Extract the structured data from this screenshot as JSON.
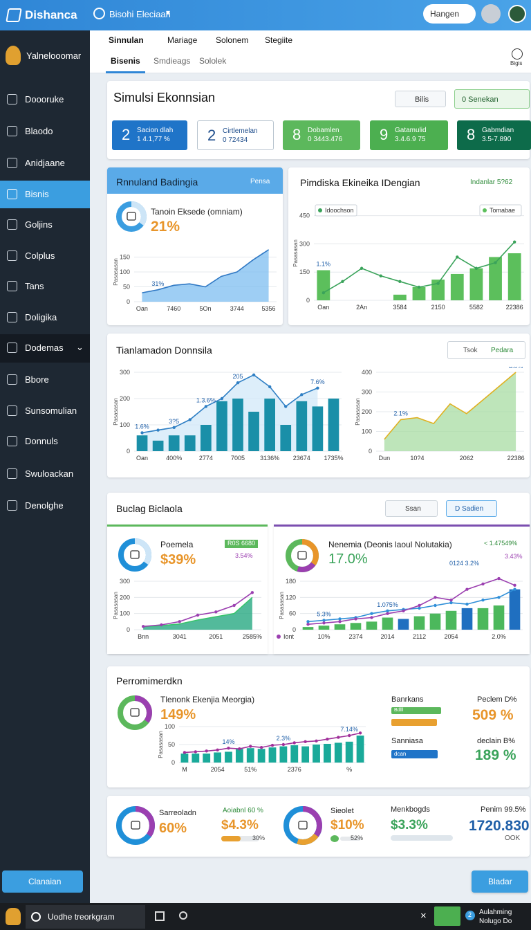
{
  "topbar": {
    "brand": "Dishanca",
    "search": "Bisohi Eleciaan",
    "button": "Hangen"
  },
  "sidebar": {
    "user": "Yalnelooomar",
    "items": [
      "Doooruke",
      "Blaodo",
      "Anidjaane",
      "Bisnis",
      "Goljins",
      "Colplus",
      "Tans",
      "Doligika",
      "Dodemas",
      "Bbore",
      "Sunsomulian",
      "Donnuls",
      "Swuloackan",
      "Denolghe"
    ],
    "active": 3,
    "button": "Clanaian"
  },
  "tabs": {
    "primary": [
      "Sinnulan",
      "Mariage",
      "Solonem",
      "Stegiite"
    ],
    "secondary": [
      "Bisenis",
      "Smdieags",
      "Sololek"
    ],
    "icon_label": "Bigis"
  },
  "summary": {
    "title": "Simulsi Ekonnsian",
    "dropdown": "Bilis",
    "button": "0 Senekan",
    "tiles": [
      {
        "value": 2,
        "label": "Sacion dlah",
        "sub": "1 4.1,77 %",
        "color": "#1f74c8"
      },
      {
        "value": 2,
        "label": "Cirtlemelan",
        "sub": "0 72434",
        "color": "#ffffff"
      },
      {
        "value": 8,
        "label": "Dobamlen",
        "sub": "0 3443.476",
        "color": "#5cb85c"
      },
      {
        "value": 9,
        "label": "Gatamulid",
        "sub": "3.4.6.9 75",
        "color": "#4caf50"
      },
      {
        "value": 8,
        "label": "Gabmdian",
        "sub": "3.5-7.890",
        "color": "#0d6b4a"
      }
    ]
  },
  "revenue": {
    "title": "Rnnuland Badingia",
    "action": "Pensa",
    "kpi_label": "Tanoin Eksede (omniam)",
    "kpi": "21%",
    "chart": {
      "type": "area",
      "y_label": "Pasasasan",
      "ylim": [
        0,
        200
      ],
      "yticks": [
        0,
        50,
        100,
        150
      ],
      "categories": [
        "Oan",
        null,
        "7460",
        null,
        "5On",
        null,
        "3744",
        null,
        "5356"
      ],
      "series": [
        {
          "kind": "area",
          "color": "#7dbdf0",
          "line_color": "#2f78c4",
          "values": [
            30,
            40,
            55,
            60,
            50,
            85,
            100,
            140,
            175
          ]
        }
      ],
      "annotations": [
        "31%"
      ]
    }
  },
  "forecast": {
    "title": "Pimdiska Ekineika IDengian",
    "badge": "Indanlar 5?62",
    "chart": {
      "type": "combo",
      "y_label": "Pasasasan",
      "ylim": [
        0,
        500
      ],
      "yticks": [
        0,
        150,
        300,
        450
      ],
      "legend": "top",
      "categories": [
        "Oan",
        null,
        "2An",
        null,
        "3584",
        null,
        "2150",
        null,
        "5582",
        null,
        "22386"
      ],
      "series": [
        {
          "name": "Tomabae",
          "kind": "bar",
          "color": "#5cbf5c",
          "values": [
            160,
            null,
            null,
            null,
            30,
            70,
            110,
            140,
            170,
            230,
            250
          ]
        },
        {
          "name": "Idoochson",
          "kind": "line",
          "color": "#3aa35a",
          "values": [
            40,
            100,
            170,
            130,
            100,
            70,
            90,
            230,
            170,
            200,
            310
          ]
        }
      ],
      "annotations": [
        "1.1%"
      ]
    }
  },
  "trend": {
    "title": "Tianlamadon Donnsila",
    "controls": [
      "Tsok",
      "Pedara"
    ],
    "charts": [
      {
        "type": "combo",
        "y_label": "Pasasasan",
        "ylim": [
          0,
          300
        ],
        "yticks": [
          0,
          100,
          200,
          300
        ],
        "categories": [
          "Oan",
          null,
          "400%",
          null,
          "2774",
          null,
          "7005",
          null,
          "3136%",
          null,
          "23674",
          null,
          "1735%"
        ],
        "series": [
          {
            "kind": "area",
            "color": "#d2e8f8",
            "line_color": "#d2e8f8",
            "values": [
              70,
              80,
              90,
              120,
              170,
              200,
              260,
              290,
              245,
              170,
              215,
              240,
              null
            ]
          },
          {
            "kind": "bar",
            "color": "#1a8fa8",
            "values": [
              60,
              40,
              60,
              60,
              100,
              190,
              200,
              150,
              200,
              100,
              190,
              170,
              200
            ]
          },
          {
            "kind": "line",
            "color": "#2f7fc4",
            "values": [
              70,
              80,
              90,
              120,
              170,
              200,
              260,
              290,
              245,
              170,
              215,
              240,
              null
            ]
          }
        ],
        "annotations": [
          "1.6%",
          "3?5",
          "1.3.6%",
          "205",
          "7.6%"
        ]
      },
      {
        "type": "area",
        "y_label": "Pasasasan",
        "ylim": [
          0,
          400
        ],
        "yticks": [
          0,
          100,
          200,
          300,
          400
        ],
        "categories": [
          "Dun",
          null,
          "10?4",
          null,
          null,
          "2062",
          null,
          null,
          "22386"
        ],
        "series": [
          {
            "kind": "area",
            "color": "#a8dca3",
            "line_color": "#e0b020",
            "values": [
              60,
              160,
              170,
              140,
              240,
              190,
              260,
              330,
              400
            ]
          }
        ],
        "annotations": [
          "2.1%",
          "3.0%"
        ]
      }
    ]
  },
  "budget": {
    "title": "Buclag Biclaola",
    "dropdown": "Ssan",
    "button": "D Sadien",
    "left": {
      "label": "Poemela",
      "kpi": "$39%",
      "badge": "R0S 6680",
      "note": "3.54%",
      "chart": {
        "type": "combo",
        "y_label": "Pasasasan",
        "ylim": [
          0,
          300
        ],
        "yticks": [
          0,
          100,
          200,
          300
        ],
        "categories": [
          "Bnn",
          null,
          "3041",
          null,
          "2051",
          null,
          "2585%"
        ],
        "series": [
          {
            "kind": "area",
            "color": "#1aa37a",
            "line_color": "#38c46c",
            "values": [
              20,
              25,
              35,
              60,
              80,
              100,
              200
            ]
          },
          {
            "kind": "line",
            "color": "#9b3fb0",
            "values": [
              20,
              30,
              50,
              90,
              110,
              150,
              230
            ]
          }
        ]
      }
    },
    "right": {
      "label": "Nenemia (Deonis laoul Nolutakia)",
      "kpi": "17.0%",
      "notes": [
        "< 1.47549%",
        "3.43%",
        "0124 3.2%"
      ],
      "chart": {
        "type": "combo",
        "y_label": "Pasasasan",
        "ylim": [
          0,
          180
        ],
        "yticks": [
          0,
          60,
          120,
          180
        ],
        "legend": "bottom-left",
        "categories": [
          null,
          "10%",
          null,
          "2374",
          null,
          "2014",
          null,
          "2112",
          null,
          "2054",
          null,
          null,
          "2.0%",
          null
        ],
        "series": [
          {
            "kind": "bar",
            "color": "#4cb85c",
            "values": [
              10,
              15,
              20,
              25,
              30,
              45,
              null,
              50,
              60,
              70,
              null,
              80,
              90,
              null
            ]
          },
          {
            "kind": "bar",
            "color": "#1f6fc0",
            "values": [
              null,
              null,
              null,
              null,
              null,
              null,
              40,
              null,
              null,
              null,
              80,
              null,
              null,
              150
            ]
          },
          {
            "kind": "line",
            "color": "#2f8fd8",
            "values": [
              30,
              35,
              40,
              45,
              60,
              70,
              75,
              80,
              90,
              100,
              95,
              110,
              120,
              150
            ]
          },
          {
            "name": "Iont",
            "kind": "line",
            "color": "#9b3fb0",
            "values": [
              20,
              25,
              30,
              40,
              45,
              60,
              70,
              90,
              120,
              110,
              150,
              170,
              190,
              165
            ]
          }
        ],
        "annotations": [
          "5.3%",
          "1.075%"
        ]
      }
    }
  },
  "performance": {
    "title": "Perromimerdkn",
    "label": "Tlenonk Ekenjia Meorgia)",
    "kpi": "149%",
    "chart": {
      "type": "combo",
      "y_label": "Pasasasan",
      "ylim": [
        0,
        100
      ],
      "yticks": [
        0,
        50,
        100
      ],
      "categories": [
        "M",
        null,
        null,
        "2054",
        null,
        null,
        "51%",
        null,
        null,
        null,
        "2376",
        null,
        null,
        null,
        null,
        "%",
        null
      ],
      "series": [
        {
          "kind": "bar",
          "color": "#1aaa9a",
          "values": [
            25,
            25,
            25,
            28,
            30,
            38,
            40,
            38,
            42,
            45,
            48,
            45,
            50,
            52,
            55,
            58,
            75
          ]
        },
        {
          "kind": "line",
          "color": "#a0309a",
          "values": [
            28,
            30,
            32,
            35,
            40,
            38,
            45,
            42,
            48,
            50,
            55,
            58,
            60,
            65,
            70,
            75,
            82
          ]
        }
      ],
      "annotations": [
        "7.14%",
        "2.3%",
        "14%"
      ]
    },
    "bar_a": "Banrkans",
    "bar_a_tag": "Bdlll",
    "bar_b": "Sanniasa",
    "bar_b_tag": "dcan",
    "stats": [
      {
        "label": "Peclem D%",
        "value": "509 %"
      },
      {
        "label": "declain B%",
        "value": "189 %"
      }
    ]
  },
  "stats": [
    {
      "label": "Sarreoladn",
      "value": "60%"
    },
    {
      "label": "Aoiabnl 60 %",
      "value": "$4.3%",
      "bar": "30%"
    },
    {
      "label": "Sieolet",
      "value": "$10%",
      "bar": "52%"
    },
    {
      "label": "Menkbogds",
      "value": "$3.3%"
    },
    {
      "label": "Penim 99.5%",
      "value": "1720.830",
      "sub": "OOK"
    }
  ],
  "footer_button": "Bladar",
  "taskbar": {
    "search": "Uodhe treorkgram",
    "badge": 2,
    "status": "Aulahming",
    "status_sub": "Nolugo Do"
  }
}
